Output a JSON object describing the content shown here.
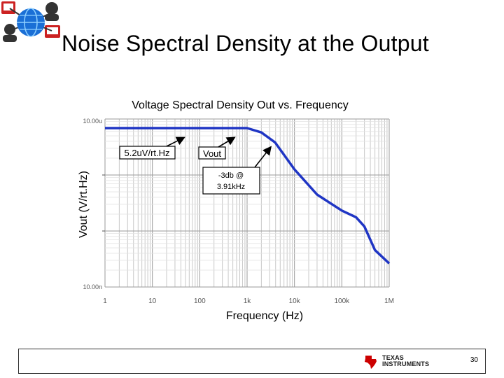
{
  "slide": {
    "title": "Noise Spectral Density at the Output",
    "page_number": "30",
    "footer_logo_line1": "TEXAS",
    "footer_logo_line2": "INSTRUMENTS"
  },
  "colors": {
    "curve": "#1f35c4",
    "grid": "#c8c8c8",
    "logo_red": "#cc0000",
    "logo_blue": "#1a6fd6"
  },
  "icons": [
    "network-globe-icon",
    "texas-instruments-logo"
  ],
  "chart_data": {
    "type": "line",
    "title": "Voltage Spectral Density Out vs. Frequency",
    "xlabel": "Frequency (Hz)",
    "ylabel": "Vout (V/rt.Hz)",
    "x_scale": "log",
    "xlim": [
      1,
      1000000
    ],
    "x_tick_labels": [
      "1",
      "10",
      "100",
      "1k",
      "10k",
      "100k",
      "1M"
    ],
    "y_tick_labels": [
      "10.00u",
      "10.00n"
    ],
    "grid": true,
    "series": [
      {
        "name": "Vout",
        "x": [
          1,
          10,
          100,
          1000,
          2000,
          3910,
          10000,
          30000,
          100000,
          200000,
          300000,
          500000,
          1000000
        ],
        "values_relative_level": [
          0.946,
          0.946,
          0.946,
          0.946,
          0.92,
          0.86,
          0.7,
          0.55,
          0.455,
          0.415,
          0.36,
          0.22,
          0.14
        ]
      }
    ],
    "annotations": [
      {
        "text": "5.2uV/rt.Hz",
        "x": 40
      },
      {
        "text": "Vout",
        "x": 500
      },
      {
        "line1": "-3db @",
        "line2": "3.91kHz",
        "x": 3910
      }
    ]
  }
}
